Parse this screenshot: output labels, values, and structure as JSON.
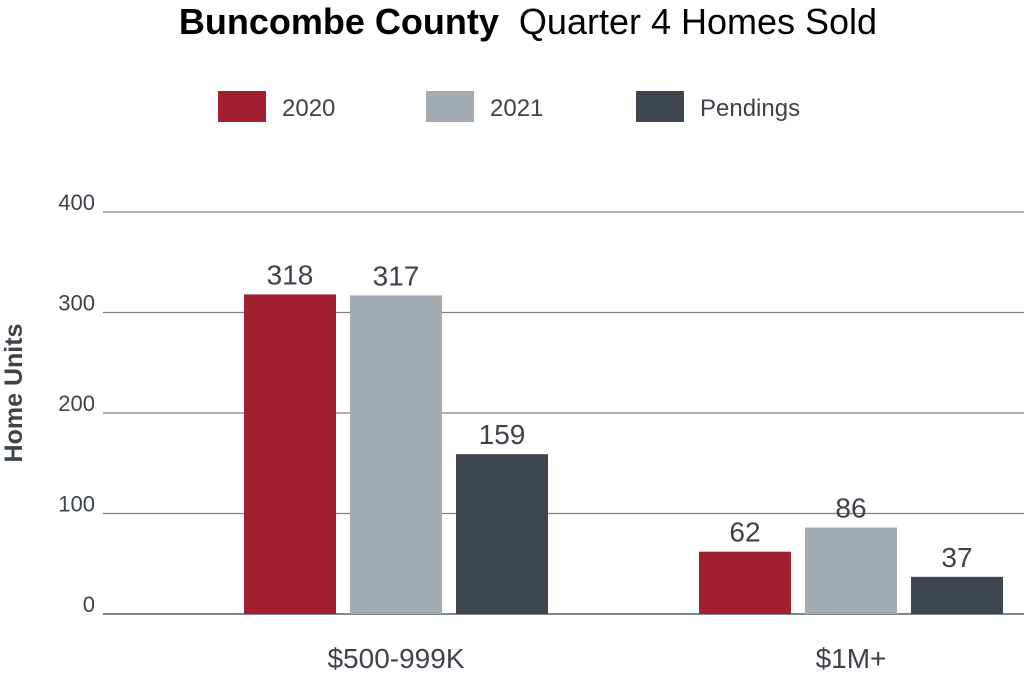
{
  "chart_data": {
    "type": "bar",
    "title_bold": "Buncombe County",
    "title_rest": "Quarter 4 Homes Sold",
    "xlabel": "",
    "ylabel": "Home Units",
    "ylim": [
      0,
      400
    ],
    "yticks": [
      0,
      100,
      200,
      300,
      400
    ],
    "grid": true,
    "legend_position": "top",
    "categories": [
      "$500-999K",
      "$1M+"
    ],
    "series": [
      {
        "name": "2020",
        "color": "#a1202f",
        "values": [
          318,
          62
        ]
      },
      {
        "name": "2021",
        "color": "#a3abb0",
        "values": [
          317,
          86
        ]
      },
      {
        "name": "Pendings",
        "color": "#3e454c",
        "values": [
          159,
          37
        ]
      }
    ]
  }
}
